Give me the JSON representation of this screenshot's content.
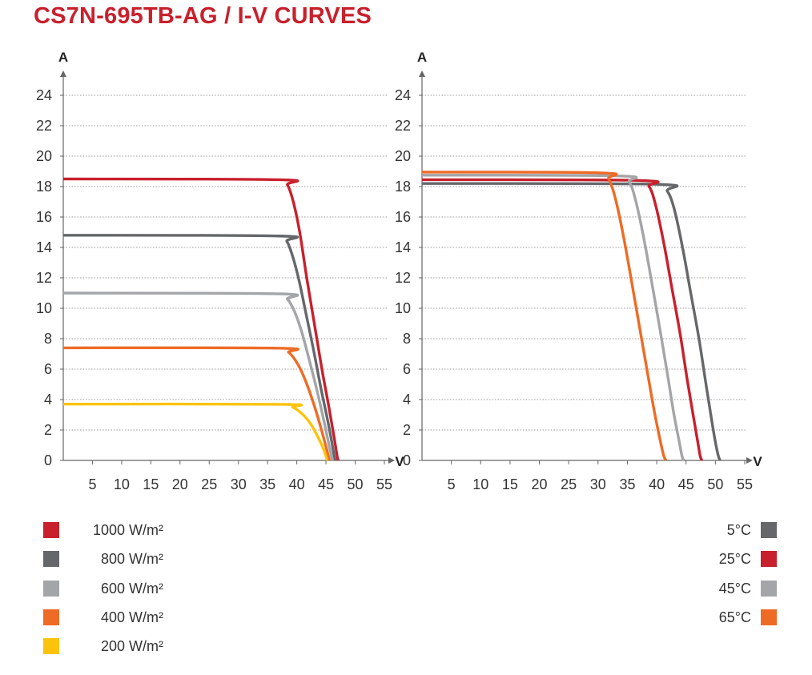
{
  "title": "CS7N-695TB-AG / I-V CURVES",
  "colors": {
    "title": "#c8202c",
    "grid": "#9a9a9a",
    "axis": "#666666"
  },
  "chart_data": [
    {
      "type": "line",
      "title": "",
      "ylabel": "A",
      "xlabel": "V",
      "xlim": [
        0,
        55
      ],
      "ylim": [
        0,
        24
      ],
      "xticks": [
        5,
        10,
        15,
        20,
        25,
        30,
        35,
        40,
        45,
        50,
        55
      ],
      "yticks": [
        0,
        2,
        4,
        6,
        8,
        10,
        12,
        14,
        16,
        18,
        20,
        22,
        24
      ],
      "grid": "horizontal dotted",
      "series": [
        {
          "name": "1000 W/m²",
          "color": "#c8202c",
          "x": [
            0,
            37.0,
            38.4,
            39.4,
            40.5,
            41.7,
            43.0,
            44.3,
            45.5,
            46.4,
            46.9,
            47.1
          ],
          "y": [
            18.5,
            18.45,
            18.1,
            17.0,
            15.0,
            12.0,
            9.0,
            6.0,
            3.5,
            1.5,
            0.3,
            0
          ]
        },
        {
          "name": "800 W/m²",
          "color": "#66676b",
          "x": [
            0,
            37.0,
            38.3,
            39.3,
            40.4,
            41.6,
            42.9,
            44.1,
            45.2,
            46.0,
            46.4,
            46.6
          ],
          "y": [
            14.8,
            14.75,
            14.4,
            13.4,
            11.8,
            9.6,
            7.2,
            4.8,
            2.8,
            1.2,
            0.3,
            0
          ]
        },
        {
          "name": "600 W/m²",
          "color": "#a4a5a8",
          "x": [
            0,
            37.0,
            38.4,
            39.6,
            40.8,
            42.0,
            43.2,
            44.3,
            45.2,
            45.8,
            46.1
          ],
          "y": [
            11.0,
            10.95,
            10.6,
            9.8,
            8.5,
            6.8,
            5.0,
            3.2,
            1.6,
            0.5,
            0
          ]
        },
        {
          "name": "400 W/m²",
          "color": "#ee6b25",
          "x": [
            0,
            37.0,
            38.6,
            39.9,
            41.1,
            42.3,
            43.4,
            44.3,
            45.0,
            45.4,
            45.6
          ],
          "y": [
            7.4,
            7.38,
            7.1,
            6.5,
            5.6,
            4.4,
            3.1,
            1.9,
            0.9,
            0.3,
            0
          ]
        },
        {
          "name": "200 W/m²",
          "color": "#fcc30d",
          "x": [
            0,
            37.5,
            39.3,
            40.8,
            42.2,
            43.4,
            44.3,
            44.8,
            45.1,
            45.2
          ],
          "y": [
            3.7,
            3.69,
            3.5,
            3.1,
            2.5,
            1.7,
            1.0,
            0.5,
            0.15,
            0
          ]
        }
      ]
    },
    {
      "type": "line",
      "title": "",
      "ylabel": "A",
      "xlabel": "V",
      "xlim": [
        0,
        55
      ],
      "ylim": [
        0,
        24
      ],
      "xticks": [
        5,
        10,
        15,
        20,
        25,
        30,
        35,
        40,
        45,
        50,
        55
      ],
      "yticks": [
        0,
        2,
        4,
        6,
        8,
        10,
        12,
        14,
        16,
        18,
        20,
        22,
        24
      ],
      "grid": "horizontal dotted",
      "series": [
        {
          "name": "5°C",
          "color": "#66676b",
          "x": [
            0,
            40.0,
            41.8,
            43.0,
            44.4,
            45.8,
            47.2,
            48.4,
            49.3,
            50.0,
            50.5,
            50.8
          ],
          "y": [
            18.2,
            18.15,
            17.7,
            16.5,
            14.0,
            11.0,
            8.0,
            5.0,
            2.8,
            1.2,
            0.3,
            0
          ]
        },
        {
          "name": "25°C",
          "color": "#c8202c",
          "x": [
            0,
            37.0,
            38.7,
            39.8,
            41.2,
            42.6,
            44.0,
            45.2,
            46.2,
            47.0,
            47.4,
            47.7
          ],
          "y": [
            18.45,
            18.4,
            18.0,
            16.8,
            14.3,
            11.3,
            8.3,
            5.3,
            3.0,
            1.2,
            0.3,
            0
          ]
        },
        {
          "name": "45°C",
          "color": "#a4a5a8",
          "x": [
            0,
            33.5,
            35.3,
            36.4,
            37.8,
            39.2,
            40.6,
            41.9,
            42.9,
            43.8,
            44.3,
            44.6
          ],
          "y": [
            18.75,
            18.7,
            18.3,
            17.1,
            14.6,
            11.6,
            8.5,
            5.5,
            3.1,
            1.3,
            0.3,
            0
          ]
        },
        {
          "name": "65°C",
          "color": "#ee6b25",
          "x": [
            0,
            30.5,
            31.8,
            32.9,
            34.3,
            35.7,
            37.1,
            38.5,
            39.6,
            40.6,
            41.2,
            41.6
          ],
          "y": [
            18.95,
            18.9,
            18.5,
            17.3,
            14.8,
            11.8,
            8.7,
            5.6,
            3.2,
            1.3,
            0.3,
            0
          ]
        }
      ]
    }
  ]
}
